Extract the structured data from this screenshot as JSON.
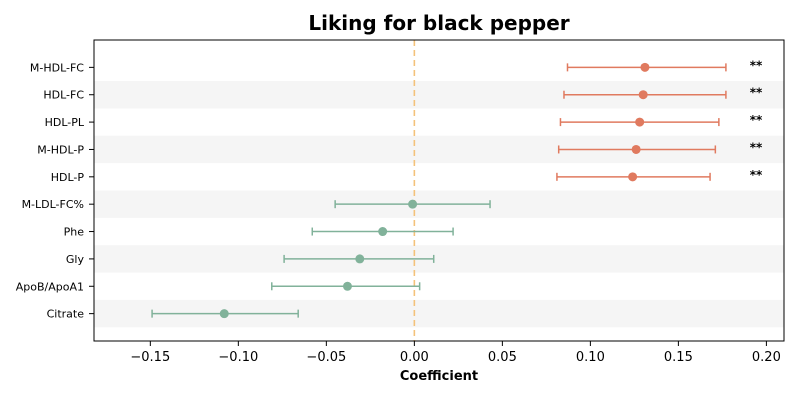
{
  "chart_data": {
    "type": "scatter",
    "title": "Liking for black pepper",
    "xlabel": "Coefficient",
    "ylabel": "",
    "xlim": [
      -0.182,
      0.21
    ],
    "xticks": [
      -0.15,
      -0.1,
      -0.05,
      0.0,
      0.05,
      0.1,
      0.15,
      0.2
    ],
    "xtick_labels": [
      "−0.15",
      "−0.10",
      "−0.05",
      "0.00",
      "0.05",
      "0.10",
      "0.15",
      "0.20"
    ],
    "reference_line": 0.0,
    "row_striping": true,
    "grid": false,
    "colors": {
      "significant": "#e07a5f",
      "nonsignificant": "#81b29a",
      "reference": "#f4c27a",
      "stripe": "#f5f5f5"
    },
    "points": [
      {
        "label": "M-HDL-FC",
        "coef": 0.131,
        "ci": [
          0.087,
          0.177
        ],
        "significance": "**"
      },
      {
        "label": "HDL-FC",
        "coef": 0.13,
        "ci": [
          0.085,
          0.177
        ],
        "significance": "**"
      },
      {
        "label": "HDL-PL",
        "coef": 0.128,
        "ci": [
          0.083,
          0.173
        ],
        "significance": "**"
      },
      {
        "label": "M-HDL-P",
        "coef": 0.126,
        "ci": [
          0.082,
          0.171
        ],
        "significance": "**"
      },
      {
        "label": "HDL-P",
        "coef": 0.124,
        "ci": [
          0.081,
          0.168
        ],
        "significance": "**"
      },
      {
        "label": "M-LDL-FC%",
        "coef": -0.001,
        "ci": [
          -0.045,
          0.043
        ],
        "significance": ""
      },
      {
        "label": "Phe",
        "coef": -0.018,
        "ci": [
          -0.058,
          0.022
        ],
        "significance": ""
      },
      {
        "label": "Gly",
        "coef": -0.031,
        "ci": [
          -0.074,
          0.011
        ],
        "significance": ""
      },
      {
        "label": "ApoB/ApoA1",
        "coef": -0.038,
        "ci": [
          -0.081,
          0.003
        ],
        "significance": ""
      },
      {
        "label": "Citrate",
        "coef": -0.108,
        "ci": [
          -0.149,
          -0.066
        ],
        "significance": ""
      }
    ]
  }
}
